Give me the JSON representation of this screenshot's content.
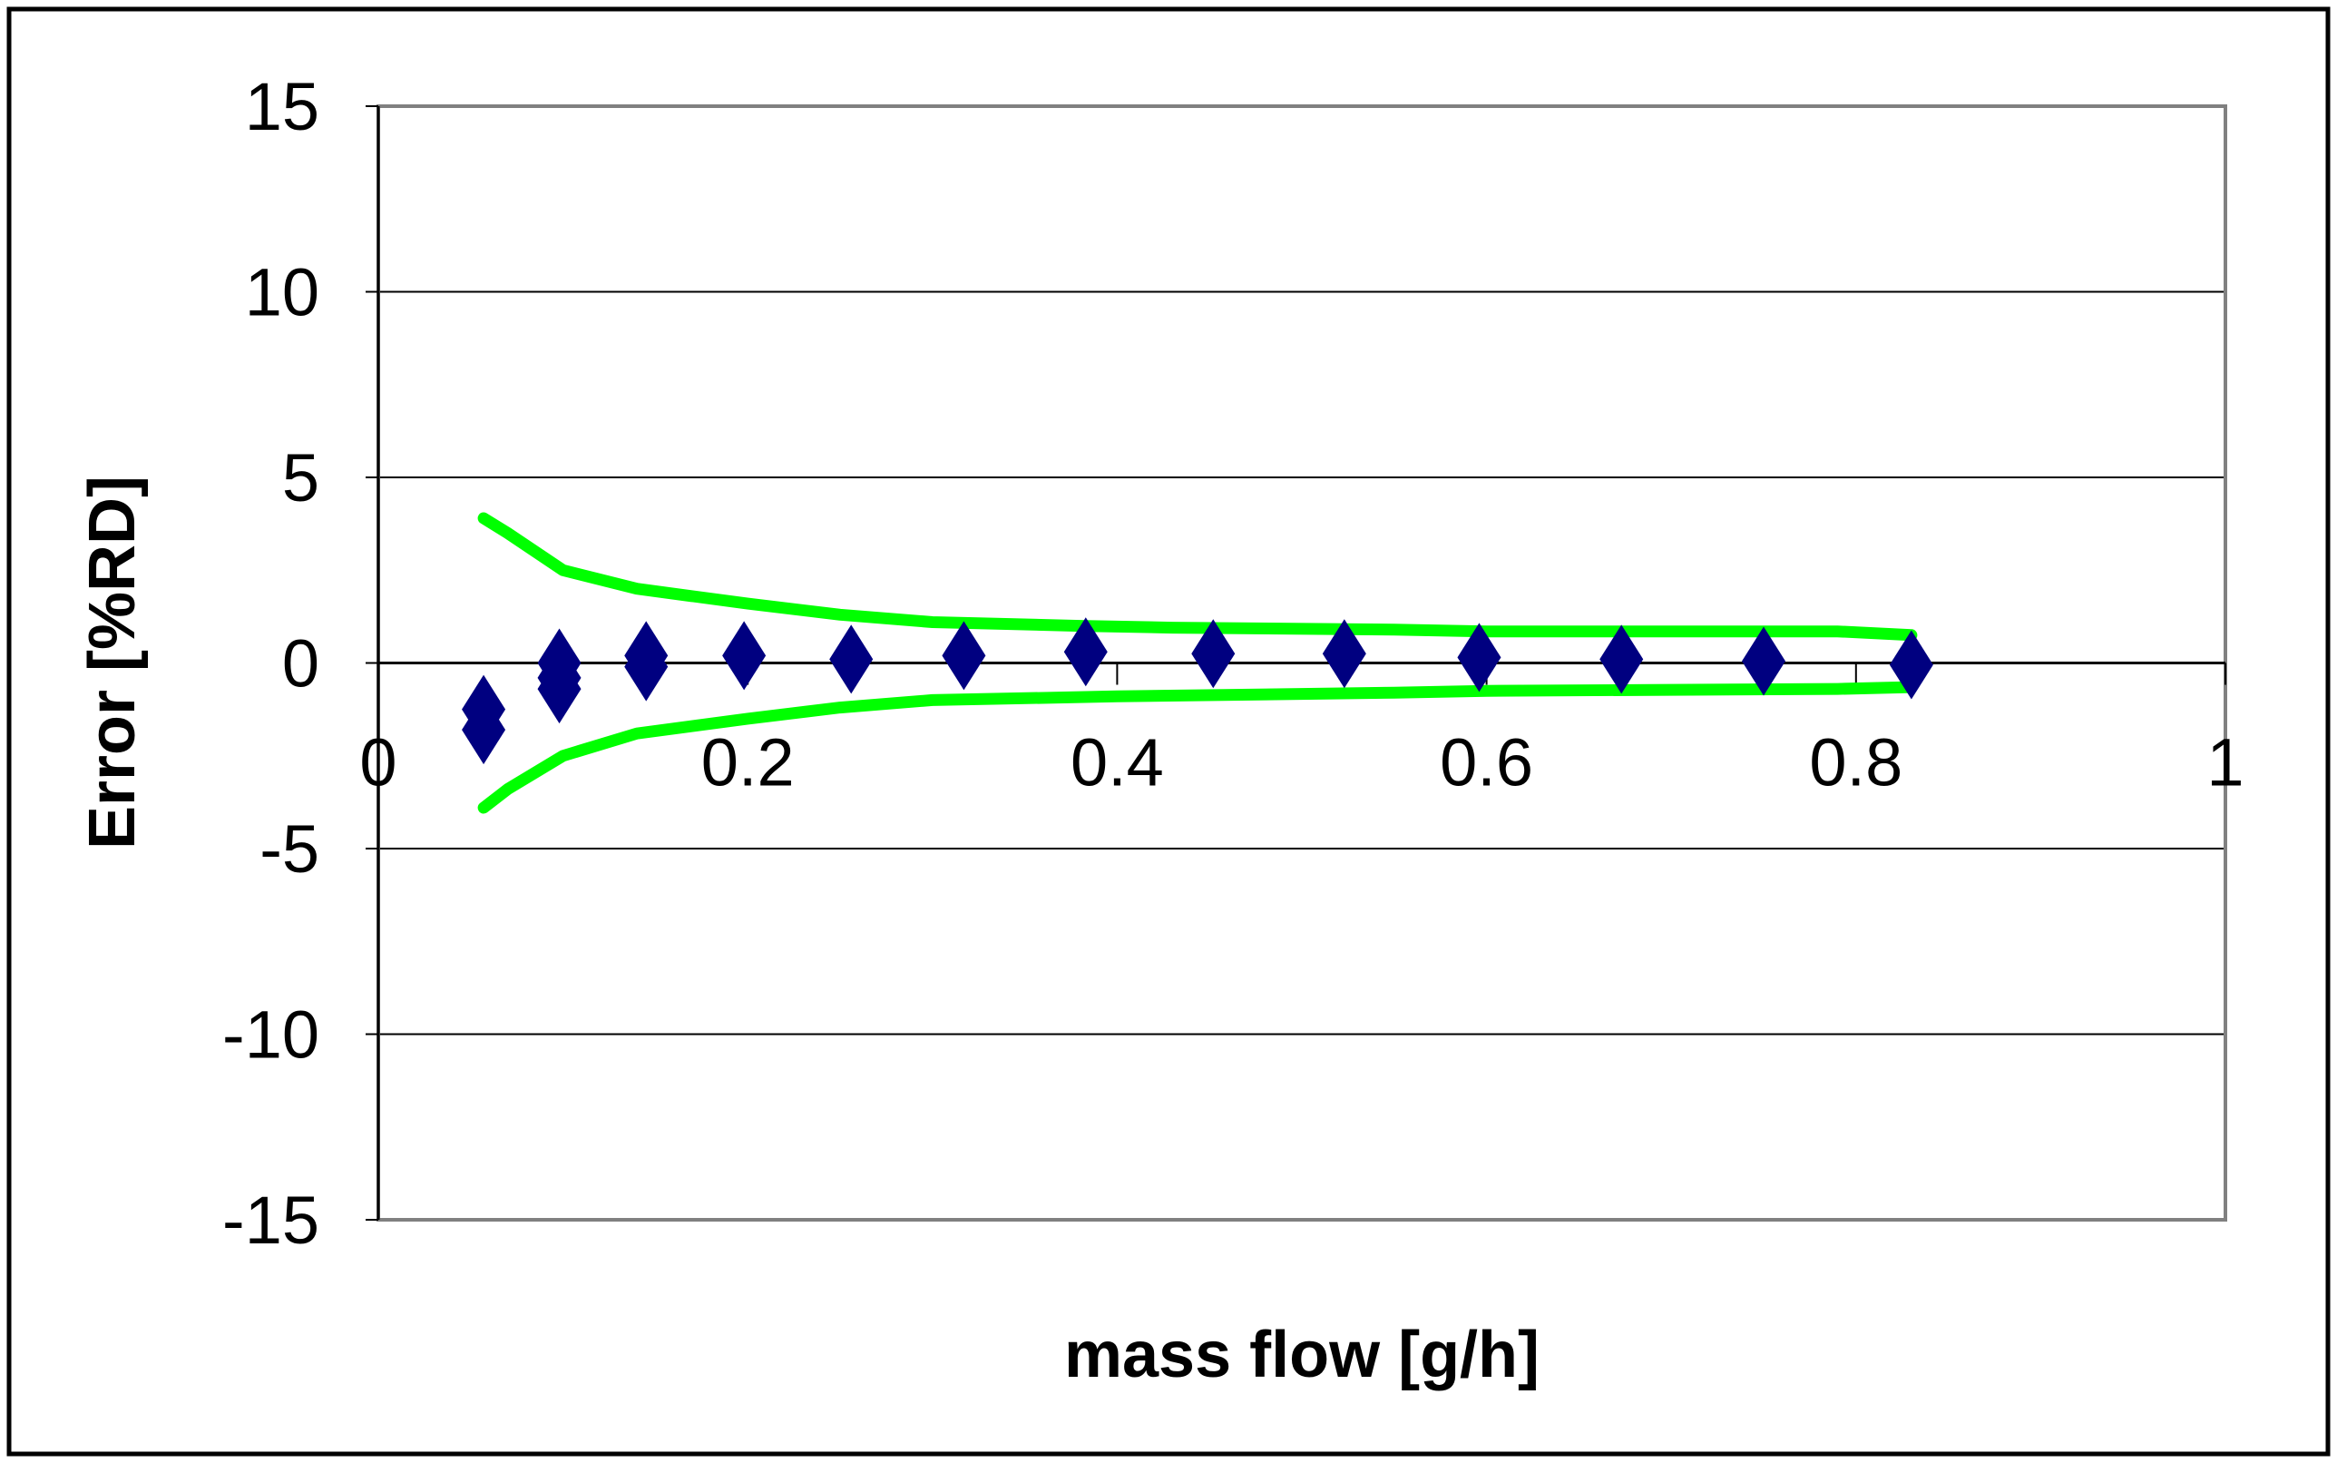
{
  "chart_data": {
    "type": "scatter",
    "title": "",
    "xlabel": "mass flow [g/h]",
    "ylabel": "Error [%RD]",
    "xlim": [
      0,
      1
    ],
    "ylim": [
      -15,
      15
    ],
    "x_ticks": [
      "0",
      "0.2",
      "0.4",
      "0.6",
      "0.8",
      "1"
    ],
    "y_ticks": [
      "15",
      "10",
      "5",
      "0",
      "-5",
      "-10",
      "-15"
    ],
    "grid": "horizontal",
    "colors": {
      "points": "#000080",
      "band": "#00ff00",
      "grid": "#000000",
      "frame": "#808080"
    },
    "points": [
      [
        0.057,
        -1.25
      ],
      [
        0.057,
        -1.8
      ],
      [
        0.098,
        0.0
      ],
      [
        0.098,
        -0.4
      ],
      [
        0.098,
        -0.7
      ],
      [
        0.145,
        0.2
      ],
      [
        0.145,
        -0.1
      ],
      [
        0.198,
        0.2
      ],
      [
        0.256,
        0.1
      ],
      [
        0.317,
        0.2
      ],
      [
        0.383,
        0.3
      ],
      [
        0.452,
        0.25
      ],
      [
        0.523,
        0.25
      ],
      [
        0.596,
        0.15
      ],
      [
        0.673,
        0.1
      ],
      [
        0.75,
        0.05
      ],
      [
        0.83,
        -0.05
      ]
    ],
    "upper_band": [
      [
        0.057,
        3.9
      ],
      [
        0.07,
        3.5
      ],
      [
        0.1,
        2.5
      ],
      [
        0.14,
        2.0
      ],
      [
        0.2,
        1.6
      ],
      [
        0.25,
        1.3
      ],
      [
        0.3,
        1.1
      ],
      [
        0.38,
        1.0
      ],
      [
        0.43,
        0.95
      ],
      [
        0.55,
        0.9
      ],
      [
        0.6,
        0.85
      ],
      [
        0.79,
        0.85
      ],
      [
        0.83,
        0.75
      ]
    ],
    "lower_band": [
      [
        0.057,
        -3.9
      ],
      [
        0.07,
        -3.4
      ],
      [
        0.1,
        -2.5
      ],
      [
        0.14,
        -1.9
      ],
      [
        0.2,
        -1.5
      ],
      [
        0.25,
        -1.2
      ],
      [
        0.3,
        -1.0
      ],
      [
        0.4,
        -0.9
      ],
      [
        0.55,
        -0.8
      ],
      [
        0.6,
        -0.75
      ],
      [
        0.79,
        -0.7
      ],
      [
        0.83,
        -0.65
      ]
    ]
  }
}
